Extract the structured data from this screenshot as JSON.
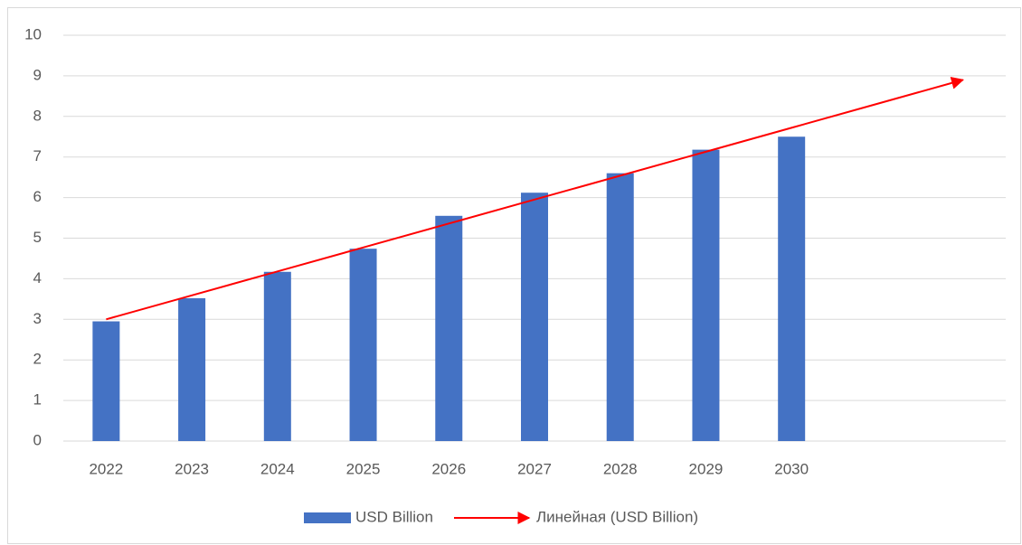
{
  "chart_data": {
    "type": "bar",
    "categories": [
      "2022",
      "2023",
      "2024",
      "2025",
      "2026",
      "2027",
      "2028",
      "2029",
      "2030",
      null,
      null
    ],
    "series": [
      {
        "name": "USD Billion",
        "color": "#4472c4",
        "values": [
          2.95,
          3.52,
          4.17,
          4.74,
          5.55,
          6.12,
          6.6,
          7.18,
          7.5,
          null,
          null
        ]
      }
    ],
    "trendline": {
      "name": "Линейная (USD Billion)",
      "color": "#ff0000",
      "values": [
        3.0,
        3.59,
        4.18,
        4.77,
        5.36,
        5.95,
        6.54,
        7.13,
        7.72,
        8.31,
        8.9
      ]
    },
    "ylim": [
      0,
      10
    ],
    "yticks": [
      0,
      1,
      2,
      3,
      4,
      5,
      6,
      7,
      8,
      9,
      10
    ],
    "grid": true,
    "legend": "bottom"
  }
}
